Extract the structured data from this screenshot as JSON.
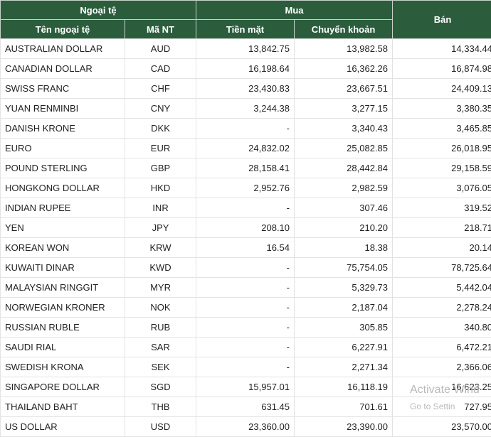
{
  "table": {
    "header": {
      "group_currency": "Ngoại tệ",
      "group_buy": "Mua",
      "sell": "Bán",
      "name": "Tên ngoại tệ",
      "code": "Mã NT",
      "cash": "Tiền mặt",
      "transfer": "Chuyển khoản"
    },
    "rows": [
      [
        "AUSTRALIAN DOLLAR",
        "AUD",
        "13,842.75",
        "13,982.58",
        "14,334.44"
      ],
      [
        "CANADIAN DOLLAR",
        "CAD",
        "16,198.64",
        "16,362.26",
        "16,874.98"
      ],
      [
        "SWISS FRANC",
        "CHF",
        "23,430.83",
        "23,667.51",
        "24,409.13"
      ],
      [
        "YUAN RENMINBI",
        "CNY",
        "3,244.38",
        "3,277.15",
        "3,380.35"
      ],
      [
        "DANISH KRONE",
        "DKK",
        "-",
        "3,340.43",
        "3,465.85"
      ],
      [
        "EURO",
        "EUR",
        "24,832.02",
        "25,082.85",
        "26,018.95"
      ],
      [
        "POUND STERLING",
        "GBP",
        "28,158.41",
        "28,442.84",
        "29,158.59"
      ],
      [
        "HONGKONG DOLLAR",
        "HKD",
        "2,952.76",
        "2,982.59",
        "3,076.05"
      ],
      [
        "INDIAN RUPEE",
        "INR",
        "-",
        "307.46",
        "319.52"
      ],
      [
        "YEN",
        "JPY",
        "208.10",
        "210.20",
        "218.71"
      ],
      [
        "KOREAN WON",
        "KRW",
        "16.54",
        "18.38",
        "20.14"
      ],
      [
        "KUWAITI DINAR",
        "KWD",
        "-",
        "75,754.05",
        "78,725.64"
      ],
      [
        "MALAYSIAN RINGGIT",
        "MYR",
        "-",
        "5,329.73",
        "5,442.04"
      ],
      [
        "NORWEGIAN KRONER",
        "NOK",
        "-",
        "2,187.04",
        "2,278.24"
      ],
      [
        "RUSSIAN RUBLE",
        "RUB",
        "-",
        "305.85",
        "340.80"
      ],
      [
        "SAUDI RIAL",
        "SAR",
        "-",
        "6,227.91",
        "6,472.21"
      ],
      [
        "SWEDISH KRONA",
        "SEK",
        "-",
        "2,271.34",
        "2,366.06"
      ],
      [
        "SINGAPORE DOLLAR",
        "SGD",
        "15,957.01",
        "16,118.19",
        "16,623.25"
      ],
      [
        "THAILAND BAHT",
        "THB",
        "631.45",
        "701.61",
        "727.95"
      ],
      [
        "US DOLLAR",
        "USD",
        "23,360.00",
        "23,390.00",
        "23,570.00"
      ]
    ]
  },
  "watermark": {
    "line1": "Activate Wind",
    "line2": "Go to Settin"
  }
}
